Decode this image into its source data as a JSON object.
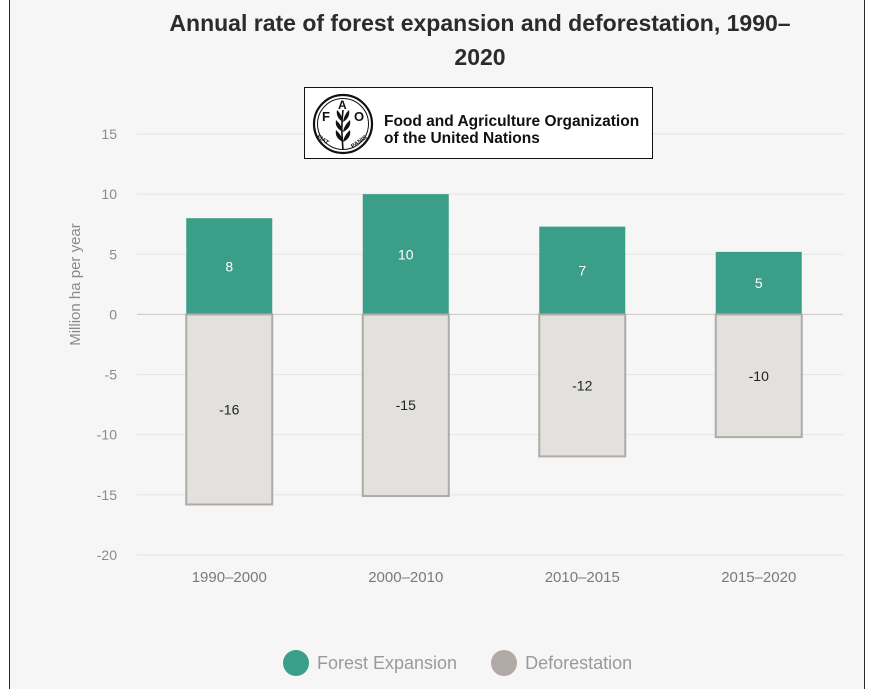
{
  "chart_data": {
    "type": "bar",
    "title": "Annual rate of forest expansion and deforestation, 1990–2020",
    "title_lines": [
      "Annual rate of forest expansion and deforestation, 1990–",
      "2020"
    ],
    "ylabel": "Million ha per year",
    "xlabel": "",
    "ylim": [
      -20,
      15
    ],
    "yticks": [
      15,
      10,
      5,
      0,
      -5,
      -10,
      -15,
      -20
    ],
    "categories": [
      "1990–2000",
      "2000–2010",
      "2010–2015",
      "2015–2020"
    ],
    "series": [
      {
        "name": "Forest Expansion",
        "color": "#3a9e88",
        "values": [
          8,
          10,
          7.3,
          5.2
        ],
        "labels": [
          "8",
          "10",
          "7",
          "5"
        ]
      },
      {
        "name": "Deforestation",
        "color": "#e2e1dd",
        "border_color": "#b0a9a6",
        "values": [
          -15.8,
          -15.1,
          -11.8,
          -10.2
        ],
        "labels": [
          "-16",
          "-15",
          "-12",
          "-10"
        ]
      }
    ],
    "grid": true,
    "legend_position": "bottom",
    "stacked": true
  },
  "logo": {
    "line1": "Food and Agriculture Organization",
    "line2": "of the United Nations",
    "emblem_letters": "FAO",
    "emblem_motto": "FIAT PANIS"
  },
  "legend": [
    {
      "label": "Forest Expansion",
      "color": "#3a9e88"
    },
    {
      "label": "Deforestation",
      "color": "#b0a9a6"
    }
  ]
}
